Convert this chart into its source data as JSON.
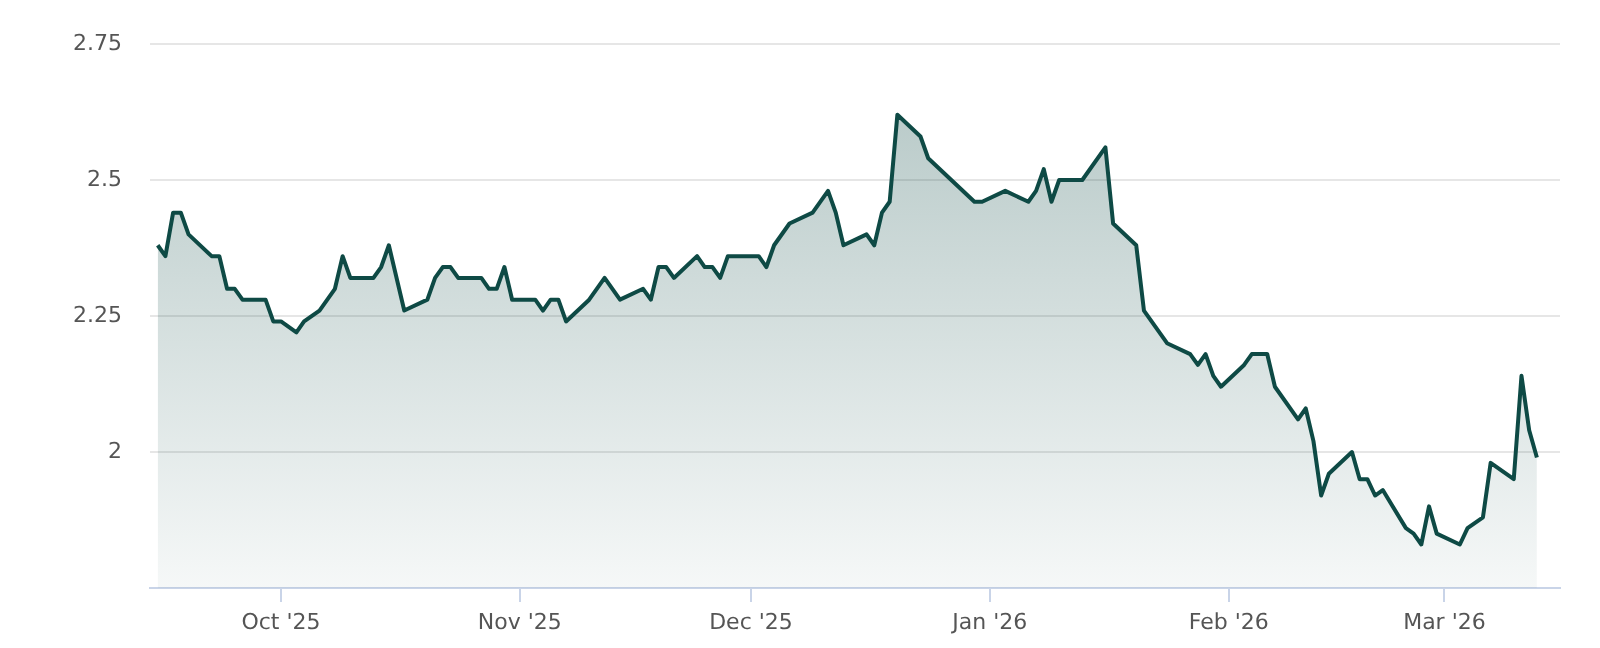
{
  "chart_data": {
    "type": "area",
    "x": [
      "2025-09-15",
      "2025-09-16",
      "2025-09-17",
      "2025-09-18",
      "2025-09-19",
      "2025-09-22",
      "2025-09-23",
      "2025-09-24",
      "2025-09-25",
      "2025-09-26",
      "2025-09-29",
      "2025-09-30",
      "2025-10-01",
      "2025-10-03",
      "2025-10-04",
      "2025-10-06",
      "2025-10-08",
      "2025-10-09",
      "2025-10-10",
      "2025-10-13",
      "2025-10-14",
      "2025-10-15",
      "2025-10-17",
      "2025-10-20",
      "2025-10-21",
      "2025-10-22",
      "2025-10-23",
      "2025-10-24",
      "2025-10-27",
      "2025-10-28",
      "2025-10-29",
      "2025-10-30",
      "2025-10-31",
      "2025-11-03",
      "2025-11-04",
      "2025-11-05",
      "2025-11-06",
      "2025-11-07",
      "2025-11-10",
      "2025-11-12",
      "2025-11-14",
      "2025-11-17",
      "2025-11-18",
      "2025-11-19",
      "2025-11-20",
      "2025-11-21",
      "2025-11-24",
      "2025-11-25",
      "2025-11-26",
      "2025-11-27",
      "2025-11-28",
      "2025-12-02",
      "2025-12-03",
      "2025-12-04",
      "2025-12-06",
      "2025-12-09",
      "2025-12-11",
      "2025-12-12",
      "2025-12-13",
      "2025-12-16",
      "2025-12-17",
      "2025-12-18",
      "2025-12-19",
      "2025-12-20",
      "2025-12-23",
      "2025-12-24",
      "2025-12-30",
      "2025-12-31",
      "2026-01-03",
      "2026-01-06",
      "2026-01-07",
      "2026-01-08",
      "2026-01-09",
      "2026-01-10",
      "2026-01-13",
      "2026-01-16",
      "2026-01-17",
      "2026-01-20",
      "2026-01-21",
      "2026-01-24",
      "2026-01-27",
      "2026-01-28",
      "2026-01-29",
      "2026-01-30",
      "2026-01-31",
      "2026-02-03",
      "2026-02-04",
      "2026-02-06",
      "2026-02-07",
      "2026-02-10",
      "2026-02-11",
      "2026-02-12",
      "2026-02-13",
      "2026-02-14",
      "2026-02-17",
      "2026-02-18",
      "2026-02-19",
      "2026-02-20",
      "2026-02-21",
      "2026-02-24",
      "2026-02-25",
      "2026-02-26",
      "2026-02-27",
      "2026-02-28",
      "2026-03-03",
      "2026-03-04",
      "2026-03-06",
      "2026-03-07",
      "2026-03-10",
      "2026-03-11",
      "2026-03-12",
      "2026-03-13"
    ],
    "series": [
      {
        "color": "#0e4a45",
        "values": [
          2.38,
          2.36,
          2.44,
          2.44,
          2.4,
          2.36,
          2.36,
          2.3,
          2.3,
          2.28,
          2.28,
          2.24,
          2.24,
          2.22,
          2.24,
          2.26,
          2.3,
          2.36,
          2.32,
          2.32,
          2.34,
          2.38,
          2.26,
          2.28,
          2.32,
          2.34,
          2.34,
          2.32,
          2.32,
          2.3,
          2.3,
          2.34,
          2.28,
          2.28,
          2.26,
          2.28,
          2.28,
          2.24,
          2.28,
          2.32,
          2.28,
          2.3,
          2.28,
          2.34,
          2.34,
          2.32,
          2.36,
          2.34,
          2.34,
          2.32,
          2.36,
          2.36,
          2.34,
          2.38,
          2.42,
          2.44,
          2.48,
          2.44,
          2.38,
          2.4,
          2.38,
          2.44,
          2.46,
          2.62,
          2.58,
          2.54,
          2.46,
          2.46,
          2.48,
          2.46,
          2.48,
          2.52,
          2.46,
          2.5,
          2.5,
          2.56,
          2.42,
          2.38,
          2.26,
          2.2,
          2.18,
          2.16,
          2.18,
          2.14,
          2.12,
          2.16,
          2.18,
          2.18,
          2.12,
          2.06,
          2.08,
          2.02,
          1.92,
          1.96,
          2.0,
          1.95,
          1.95,
          1.92,
          1.93,
          1.86,
          1.85,
          1.83,
          1.9,
          1.85,
          1.83,
          1.86,
          1.88,
          1.98,
          1.95,
          2.14,
          2.04,
          1.99
        ]
      }
    ],
    "xlim": [
      "2025-09-14",
      "2026-03-16"
    ],
    "xticks": [
      {
        "value": "2025-10-01",
        "label": "Oct '25"
      },
      {
        "value": "2025-11-01",
        "label": "Nov '25"
      },
      {
        "value": "2025-12-01",
        "label": "Dec '25"
      },
      {
        "value": "2026-01-01",
        "label": "Jan '26"
      },
      {
        "value": "2026-02-01",
        "label": "Feb '26"
      },
      {
        "value": "2026-03-01",
        "label": "Mar '26"
      }
    ],
    "ylim": [
      1.75,
      2.75
    ],
    "yticks": [
      2,
      2.25,
      2.5,
      2.75
    ],
    "grid": "y",
    "legend": false
  }
}
